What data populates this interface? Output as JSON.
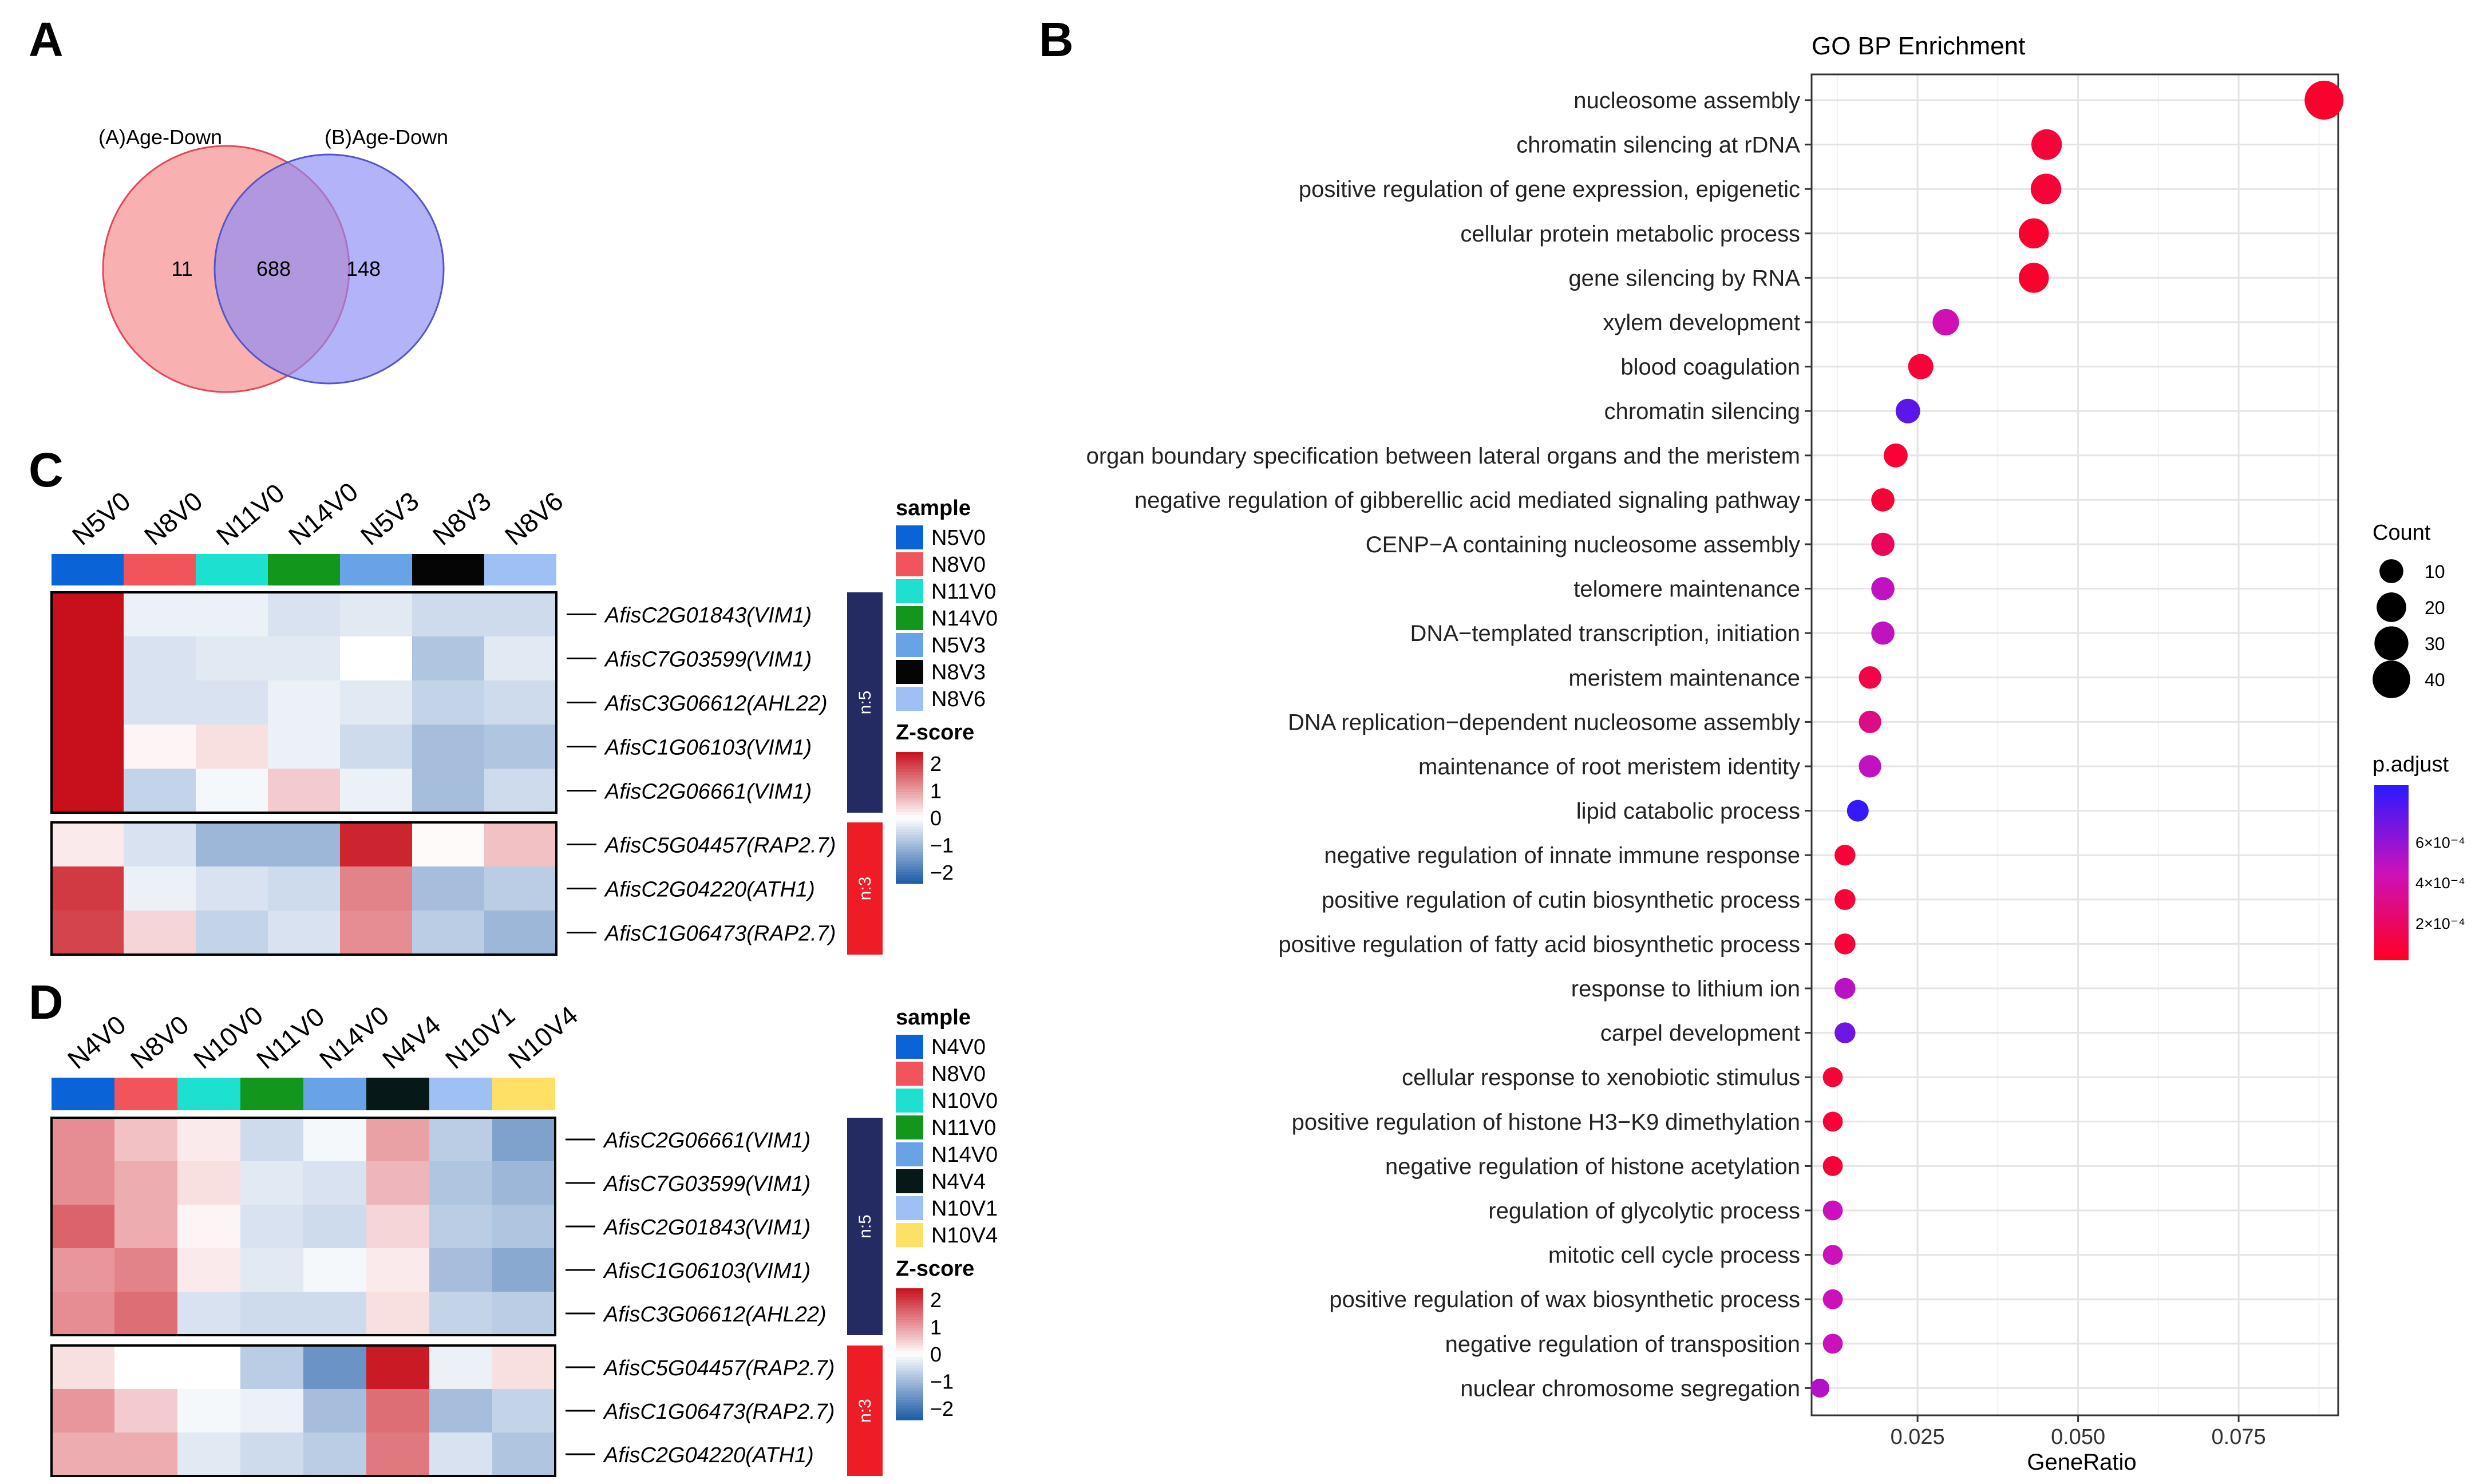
{
  "panel_letters": {
    "a": "A",
    "b": "B",
    "c": "C",
    "d": "D"
  },
  "colors": {
    "venn_a_fill": "#f47c7c",
    "venn_a_stroke": "#e8455a",
    "venn_b_fill": "#8b8bf7",
    "venn_b_stroke": "#5555c8",
    "cluster_n5": "#232b62",
    "cluster_n3": "#ee1c25",
    "heat_low": "#1c5aa6",
    "heat_mid": "#ffffff",
    "heat_high": "#c8101c",
    "padj_low": "#ff0022",
    "padj_mid": "#cc11bb",
    "padj_high": "#2a1aff"
  },
  "chart_data": [
    {
      "type": "venn",
      "panel": "A",
      "sets": [
        {
          "label": "(A)Age-Down",
          "only": "11"
        },
        {
          "label": "(B)Age-Down",
          "only": "148"
        }
      ],
      "intersection": "688"
    },
    {
      "type": "heatmap",
      "panel": "C",
      "columns": [
        {
          "name": "N5V0",
          "color": "#0a64d8"
        },
        {
          "name": "N8V0",
          "color": "#f2545b"
        },
        {
          "name": "N11V0",
          "color": "#1ee0d0"
        },
        {
          "name": "N14V0",
          "color": "#12961c"
        },
        {
          "name": "N5V3",
          "color": "#6aa2e8"
        },
        {
          "name": "N8V3",
          "color": "#050505"
        },
        {
          "name": "N8V6",
          "color": "#9ec0f4"
        }
      ],
      "blocks": [
        {
          "cluster": "n:5",
          "rows": [
            {
              "gene": "AfisC2G01843(VIM1)",
              "z": [
                2.3,
                -0.2,
                -0.2,
                -0.4,
                -0.3,
                -0.5,
                -0.5
              ]
            },
            {
              "gene": "AfisC7G03599(VIM1)",
              "z": [
                2.3,
                -0.4,
                -0.3,
                -0.3,
                0.0,
                -0.8,
                -0.3
              ]
            },
            {
              "gene": "AfisC3G06612(AHL22)",
              "z": [
                2.3,
                -0.4,
                -0.4,
                -0.2,
                -0.3,
                -0.6,
                -0.5
              ]
            },
            {
              "gene": "AfisC1G06103(VIM1)",
              "z": [
                2.3,
                0.1,
                0.3,
                -0.2,
                -0.5,
                -0.9,
                -0.8
              ]
            },
            {
              "gene": "AfisC2G06661(VIM1)",
              "z": [
                2.3,
                -0.6,
                -0.1,
                0.5,
                -0.2,
                -0.9,
                -0.5
              ]
            }
          ]
        },
        {
          "cluster": "n:3",
          "rows": [
            {
              "gene": "AfisC5G04457(RAP2.7)",
              "z": [
                0.2,
                -0.4,
                -1.0,
                -1.0,
                2.1,
                0.05,
                0.6
              ]
            },
            {
              "gene": "AfisC2G04220(ATH1)",
              "z": [
                1.9,
                -0.2,
                -0.4,
                -0.5,
                1.2,
                -0.9,
                -0.7
              ]
            },
            {
              "gene": "AfisC1G06473(RAP2.7)",
              "z": [
                1.8,
                0.4,
                -0.6,
                -0.4,
                1.1,
                -0.7,
                -1.0
              ]
            }
          ]
        }
      ],
      "legend_sample_title": "sample",
      "legend_z_title": "Z-score",
      "z_ticks": [
        "2",
        "1",
        "0",
        "−1",
        "−2"
      ]
    },
    {
      "type": "heatmap",
      "panel": "D",
      "columns": [
        {
          "name": "N4V0",
          "color": "#0a64d8"
        },
        {
          "name": "N8V0",
          "color": "#f2545b"
        },
        {
          "name": "N10V0",
          "color": "#1ee0d0"
        },
        {
          "name": "N11V0",
          "color": "#12961c"
        },
        {
          "name": "N14V0",
          "color": "#6aa2e8"
        },
        {
          "name": "N4V4",
          "color": "#071818"
        },
        {
          "name": "N10V1",
          "color": "#9ec0f4"
        },
        {
          "name": "N10V4",
          "color": "#ffe066"
        }
      ],
      "blocks": [
        {
          "cluster": "n:5",
          "rows": [
            {
              "gene": "AfisC2G06661(VIM1)",
              "z": [
                1.1,
                0.6,
                0.2,
                -0.5,
                -0.1,
                0.9,
                -0.7,
                -1.3
              ]
            },
            {
              "gene": "AfisC7G03599(VIM1)",
              "z": [
                1.1,
                0.8,
                0.3,
                -0.3,
                -0.4,
                0.7,
                -0.8,
                -1.0
              ]
            },
            {
              "gene": "AfisC2G01843(VIM1)",
              "z": [
                1.5,
                0.8,
                0.1,
                -0.4,
                -0.5,
                0.4,
                -0.7,
                -0.8
              ]
            },
            {
              "gene": "AfisC1G06103(VIM1)",
              "z": [
                1.0,
                1.2,
                0.2,
                -0.3,
                -0.1,
                0.2,
                -0.9,
                -1.2
              ]
            },
            {
              "gene": "AfisC3G06612(AHL22)",
              "z": [
                1.1,
                1.4,
                -0.4,
                -0.5,
                -0.5,
                0.3,
                -0.6,
                -0.7
              ]
            }
          ]
        },
        {
          "cluster": "n:3",
          "rows": [
            {
              "gene": "AfisC5G04457(RAP2.7)",
              "z": [
                0.3,
                0.0,
                0.0,
                -0.7,
                -1.5,
                2.2,
                -0.2,
                0.3
              ]
            },
            {
              "gene": "AfisC1G06473(RAP2.7)",
              "z": [
                1.0,
                0.5,
                -0.1,
                -0.2,
                -0.9,
                1.4,
                -0.9,
                -0.6
              ]
            },
            {
              "gene": "AfisC2G04220(ATH1)",
              "z": [
                0.8,
                0.8,
                -0.3,
                -0.5,
                -0.7,
                1.3,
                -0.4,
                -0.8
              ]
            }
          ]
        }
      ],
      "legend_sample_title": "sample",
      "legend_z_title": "Z-score",
      "z_ticks": [
        "2",
        "1",
        "0",
        "−1",
        "−2"
      ]
    },
    {
      "type": "scatter",
      "panel": "B",
      "title": "GO BP Enrichment",
      "xlabel": "GeneRatio",
      "xlim": [
        0.0085,
        0.0905
      ],
      "xticks": [
        0.025,
        0.05,
        0.075
      ],
      "xtick_labels": [
        "0.025",
        "0.050",
        "0.075"
      ],
      "terms": [
        {
          "term": "nucleosome assembly",
          "x": 0.0883,
          "count": 44,
          "padj": 5e-05
        },
        {
          "term": "chromatin silencing at rDNA",
          "x": 0.0451,
          "count": 22,
          "padj": 8e-05
        },
        {
          "term": "positive regulation of gene expression, epigenetic",
          "x": 0.045,
          "count": 22,
          "padj": 8e-05
        },
        {
          "term": "cellular protein metabolic process",
          "x": 0.0431,
          "count": 21,
          "padj": 6e-05
        },
        {
          "term": "gene silencing by RNA",
          "x": 0.0431,
          "count": 21,
          "padj": 6e-05
        },
        {
          "term": "xylem development",
          "x": 0.0294,
          "count": 14,
          "padj": 0.00042
        },
        {
          "term": "blood coagulation",
          "x": 0.0255,
          "count": 12,
          "padj": 8e-05
        },
        {
          "term": "chromatin silencing",
          "x": 0.0235,
          "count": 11,
          "padj": 0.00075
        },
        {
          "term": "organ boundary specification between lateral organs and the meristem",
          "x": 0.0216,
          "count": 10,
          "padj": 8e-05
        },
        {
          "term": "negative regulation of gibberellic acid mediated signaling pathway",
          "x": 0.0196,
          "count": 9,
          "padj": 8e-05
        },
        {
          "term": "CENP−A containing nucleosome assembly",
          "x": 0.0196,
          "count": 9,
          "padj": 0.00018
        },
        {
          "term": "telomere maintenance",
          "x": 0.0196,
          "count": 9,
          "padj": 0.00048
        },
        {
          "term": "DNA−templated transcription, initiation",
          "x": 0.0196,
          "count": 9,
          "padj": 0.00048
        },
        {
          "term": "meristem maintenance",
          "x": 0.0176,
          "count": 8,
          "padj": 0.00012
        },
        {
          "term": "DNA replication−dependent nucleosome assembly",
          "x": 0.0176,
          "count": 8,
          "padj": 0.0003
        },
        {
          "term": "maintenance of root meristem identity",
          "x": 0.0176,
          "count": 8,
          "padj": 0.00048
        },
        {
          "term": "lipid catabolic process",
          "x": 0.0157,
          "count": 7,
          "padj": 0.00085
        },
        {
          "term": "negative regulation of innate immune response",
          "x": 0.0137,
          "count": 6,
          "padj": 8e-05
        },
        {
          "term": "positive regulation of cutin biosynthetic process",
          "x": 0.0137,
          "count": 6,
          "padj": 8e-05
        },
        {
          "term": "positive regulation of fatty acid biosynthetic process",
          "x": 0.0137,
          "count": 6,
          "padj": 8e-05
        },
        {
          "term": "response to lithium ion",
          "x": 0.0137,
          "count": 6,
          "padj": 0.0005
        },
        {
          "term": "carpel development",
          "x": 0.0137,
          "count": 6,
          "padj": 0.0007
        },
        {
          "term": "cellular response to xenobiotic stimulus",
          "x": 0.0118,
          "count": 5,
          "padj": 8e-05
        },
        {
          "term": "positive regulation of histone H3−K9 dimethylation",
          "x": 0.0118,
          "count": 5,
          "padj": 8e-05
        },
        {
          "term": "negative regulation of histone acetylation",
          "x": 0.0118,
          "count": 5,
          "padj": 8e-05
        },
        {
          "term": "regulation of glycolytic process",
          "x": 0.0118,
          "count": 5,
          "padj": 0.00045
        },
        {
          "term": "mitotic cell cycle process",
          "x": 0.0118,
          "count": 5,
          "padj": 0.00045
        },
        {
          "term": "positive regulation of wax biosynthetic process",
          "x": 0.0118,
          "count": 5,
          "padj": 0.00045
        },
        {
          "term": "negative regulation of transposition",
          "x": 0.0118,
          "count": 5,
          "padj": 0.00045
        },
        {
          "term": "nuclear chromosome segregation",
          "x": 0.0098,
          "count": 4,
          "padj": 0.00052
        }
      ],
      "legend_count": {
        "title": "Count",
        "values": [
          10,
          20,
          30,
          40
        ],
        "labels": [
          "10",
          "20",
          "30",
          "40"
        ]
      },
      "legend_padj": {
        "title": "p.adjust",
        "range": [
          2e-05,
          0.00088
        ],
        "ticks": [
          0.0006,
          0.0004,
          0.0002
        ],
        "tick_labels": [
          "6×10⁻⁴",
          "4×10⁻⁴",
          "2×10⁻⁴"
        ]
      }
    }
  ]
}
